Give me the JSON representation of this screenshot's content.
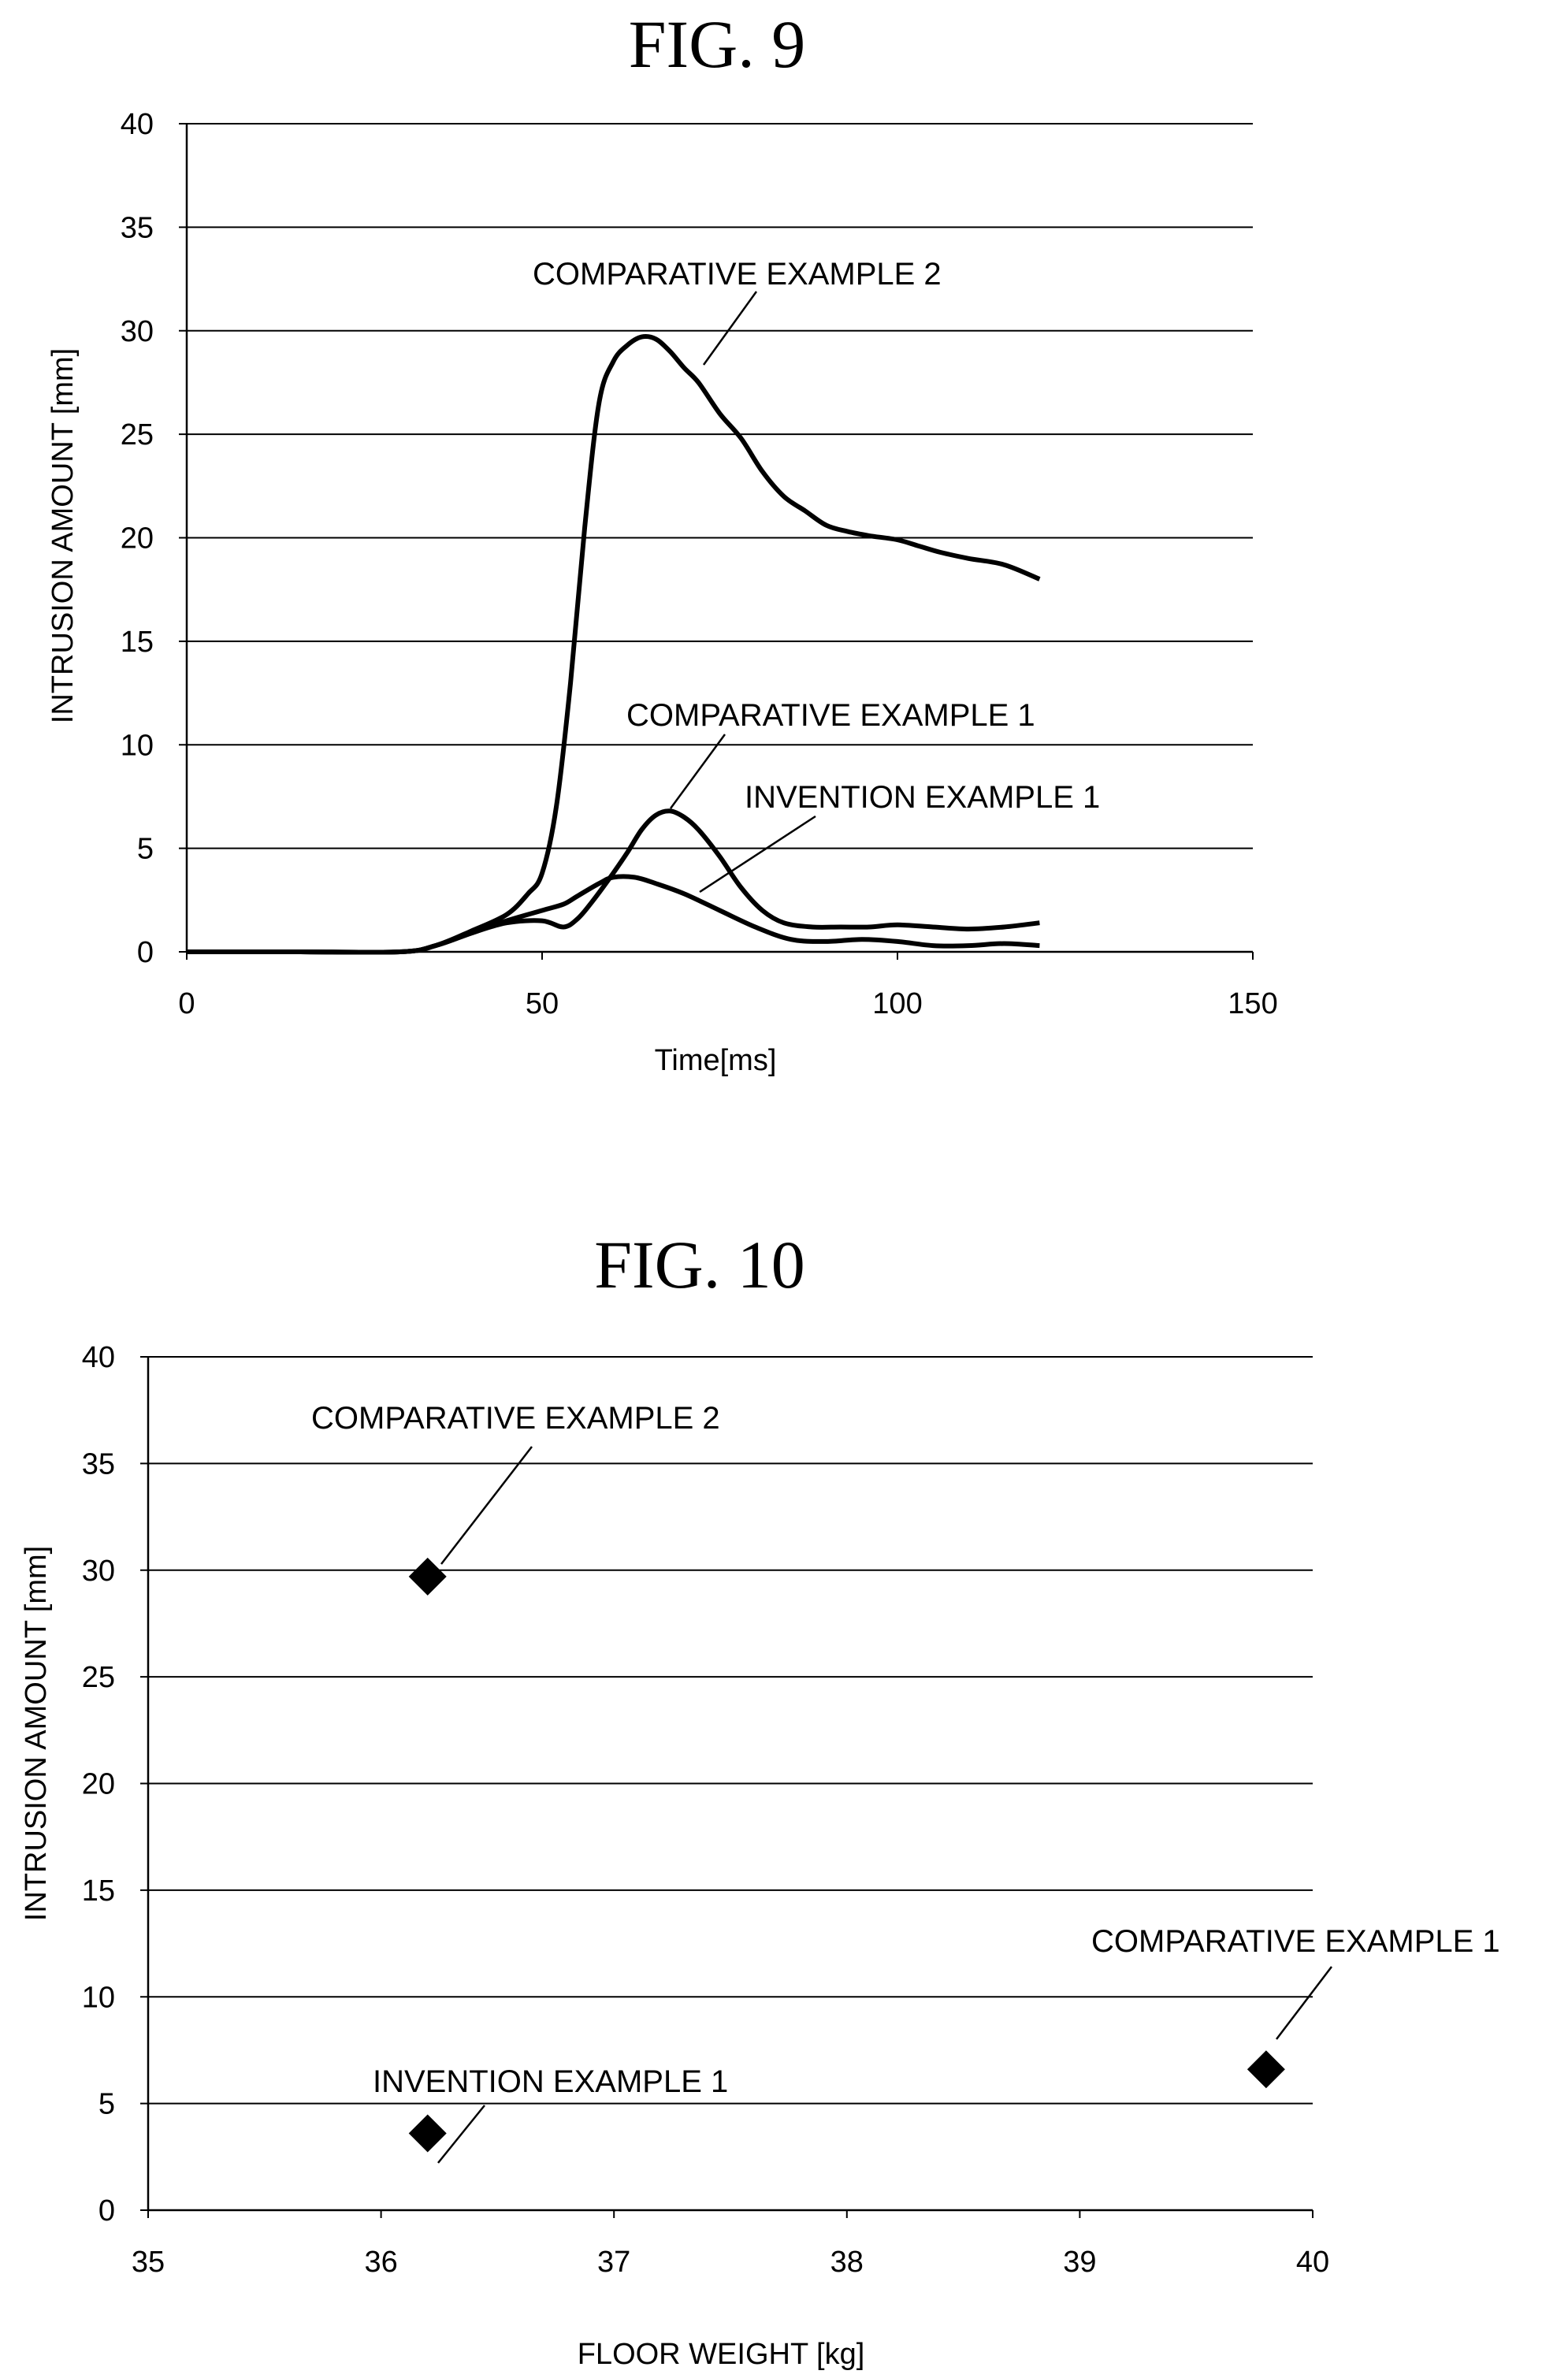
{
  "chart_data": [
    {
      "type": "line",
      "title": "FIG. 9",
      "xlabel": "Time[ms]",
      "ylabel": "INTRUSION AMOUNT [mm]",
      "xlim": [
        0,
        150
      ],
      "ylim": [
        0,
        40
      ],
      "x_ticks": [
        "0",
        "50",
        "100",
        "150"
      ],
      "y_ticks": [
        "0",
        "5",
        "10",
        "15",
        "20",
        "25",
        "30",
        "35",
        "40"
      ],
      "grid": "horizontal",
      "series": [
        {
          "name": "COMPARATIVE EXAMPLE 2",
          "x": [
            0,
            15,
            30,
            35,
            40,
            45,
            48,
            50,
            52,
            54,
            56,
            58,
            60,
            62,
            64,
            66,
            68,
            70,
            72,
            75,
            78,
            81,
            84,
            87,
            90,
            93,
            96,
            100,
            103,
            106,
            110,
            115,
            120
          ],
          "y": [
            0,
            0,
            0,
            0.3,
            1.0,
            1.8,
            2.8,
            3.8,
            7.0,
            13.0,
            20.5,
            26.5,
            28.5,
            29.3,
            29.7,
            29.6,
            29.0,
            28.2,
            27.5,
            26.0,
            24.8,
            23.2,
            22.0,
            21.3,
            20.6,
            20.3,
            20.1,
            19.9,
            19.6,
            19.3,
            19.0,
            18.7,
            18.0
          ]
        },
        {
          "name": "COMPARATIVE EXAMPLE 1",
          "x": [
            0,
            15,
            30,
            35,
            40,
            45,
            50,
            53,
            55,
            57,
            60,
            62,
            64,
            66,
            68,
            70,
            72,
            75,
            78,
            81,
            84,
            88,
            92,
            96,
            100,
            105,
            110,
            115,
            120
          ],
          "y": [
            0,
            0,
            0,
            0.3,
            0.9,
            1.4,
            1.5,
            1.2,
            1.6,
            2.4,
            3.8,
            4.8,
            5.9,
            6.6,
            6.8,
            6.5,
            5.9,
            4.6,
            3.1,
            2.0,
            1.4,
            1.2,
            1.2,
            1.2,
            1.3,
            1.2,
            1.1,
            1.2,
            1.4
          ]
        },
        {
          "name": "INVENTION EXAMPLE 1",
          "x": [
            0,
            15,
            30,
            35,
            40,
            45,
            50,
            53,
            55,
            58,
            60,
            63,
            66,
            70,
            75,
            80,
            85,
            90,
            95,
            100,
            105,
            110,
            115,
            120
          ],
          "y": [
            0,
            0,
            0,
            0.3,
            0.9,
            1.5,
            2.0,
            2.3,
            2.7,
            3.3,
            3.6,
            3.6,
            3.3,
            2.8,
            2.0,
            1.2,
            0.6,
            0.5,
            0.6,
            0.5,
            0.3,
            0.3,
            0.4,
            0.3
          ]
        }
      ]
    },
    {
      "type": "scatter",
      "title": "FIG. 10",
      "xlabel": "FLOOR WEIGHT [kg]",
      "ylabel": "INTRUSION AMOUNT [mm]",
      "xlim": [
        35,
        40
      ],
      "ylim": [
        0,
        40
      ],
      "x_ticks": [
        "35",
        "36",
        "37",
        "38",
        "39",
        "40"
      ],
      "y_ticks": [
        "0",
        "5",
        "10",
        "15",
        "20",
        "25",
        "30",
        "35",
        "40"
      ],
      "grid": "horizontal",
      "points": [
        {
          "name": "COMPARATIVE EXAMPLE 2",
          "x": 36.2,
          "y": 29.7
        },
        {
          "name": "INVENTION EXAMPLE 1",
          "x": 36.2,
          "y": 3.6
        },
        {
          "name": "COMPARATIVE EXAMPLE 1",
          "x": 39.8,
          "y": 6.6
        }
      ]
    }
  ]
}
